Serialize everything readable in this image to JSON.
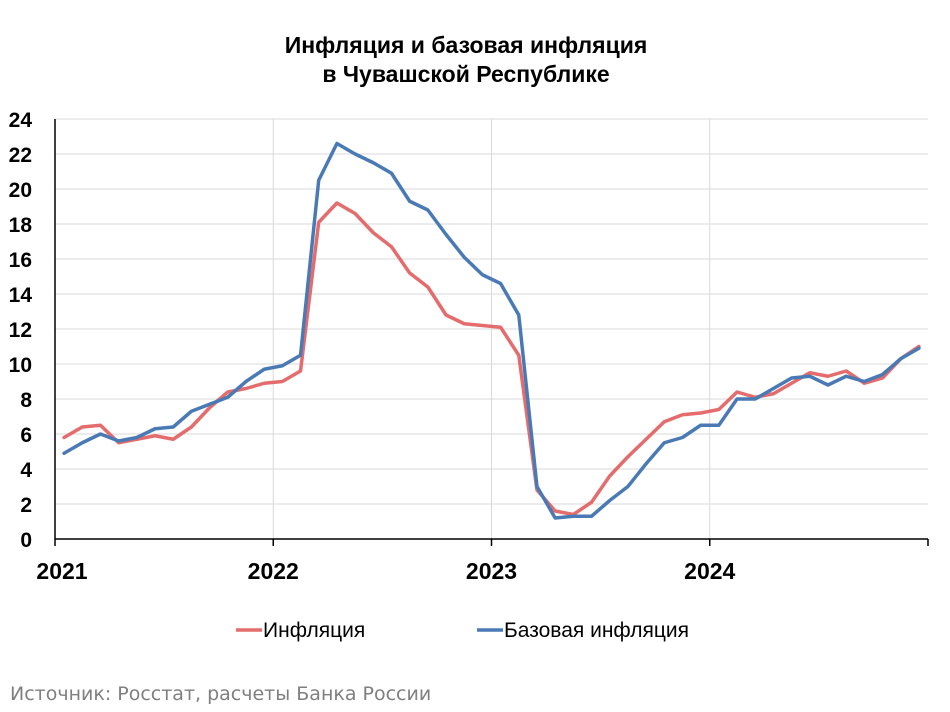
{
  "title_lines": [
    "Инфляция и базовая инфляция",
    "в Чувашской Республике"
  ],
  "source": "Источник: Росстат, расчеты Банка России",
  "chart_data": {
    "type": "line",
    "title": "Инфляция и базовая инфляция в Чувашской Республике",
    "xlabel": "",
    "ylabel": "",
    "x_start": "2021-01",
    "x_ticks": [
      "2021",
      "2022",
      "2023",
      "2024"
    ],
    "y_ticks": [
      "0",
      "2",
      "4",
      "6",
      "8",
      "10",
      "12",
      "14",
      "16",
      "18",
      "20",
      "22",
      "24"
    ],
    "ylim": [
      0,
      24
    ],
    "grid": true,
    "legend_position": "bottom",
    "series": [
      {
        "name": "Инфляция",
        "color": "#e46c6c",
        "values": [
          5.8,
          6.4,
          6.5,
          5.5,
          5.7,
          5.9,
          5.7,
          6.4,
          7.5,
          8.4,
          8.6,
          8.9,
          9.0,
          9.6,
          18.1,
          19.2,
          18.6,
          17.5,
          16.7,
          15.2,
          14.4,
          12.8,
          12.3,
          12.2,
          12.1,
          10.5,
          2.8,
          1.6,
          1.4,
          2.1,
          3.6,
          4.7,
          5.7,
          6.7,
          7.1,
          7.2,
          7.4,
          8.4,
          8.1,
          8.3,
          8.9,
          9.5,
          9.3,
          9.6,
          8.9,
          9.2,
          10.3,
          11.0
        ]
      },
      {
        "name": "Базовая инфляция",
        "color": "#4a7ab5",
        "values": [
          4.9,
          5.5,
          6.0,
          5.6,
          5.8,
          6.3,
          6.4,
          7.3,
          7.7,
          8.1,
          9.0,
          9.7,
          9.9,
          10.5,
          20.5,
          22.6,
          22.0,
          21.5,
          20.9,
          19.3,
          18.8,
          17.4,
          16.1,
          15.1,
          14.6,
          12.8,
          3.0,
          1.2,
          1.3,
          1.3,
          2.2,
          3.0,
          4.3,
          5.5,
          5.8,
          6.5,
          6.5,
          8.0,
          8.0,
          8.6,
          9.2,
          9.3,
          8.8,
          9.3,
          9.0,
          9.4,
          10.3,
          10.9
        ]
      }
    ]
  }
}
